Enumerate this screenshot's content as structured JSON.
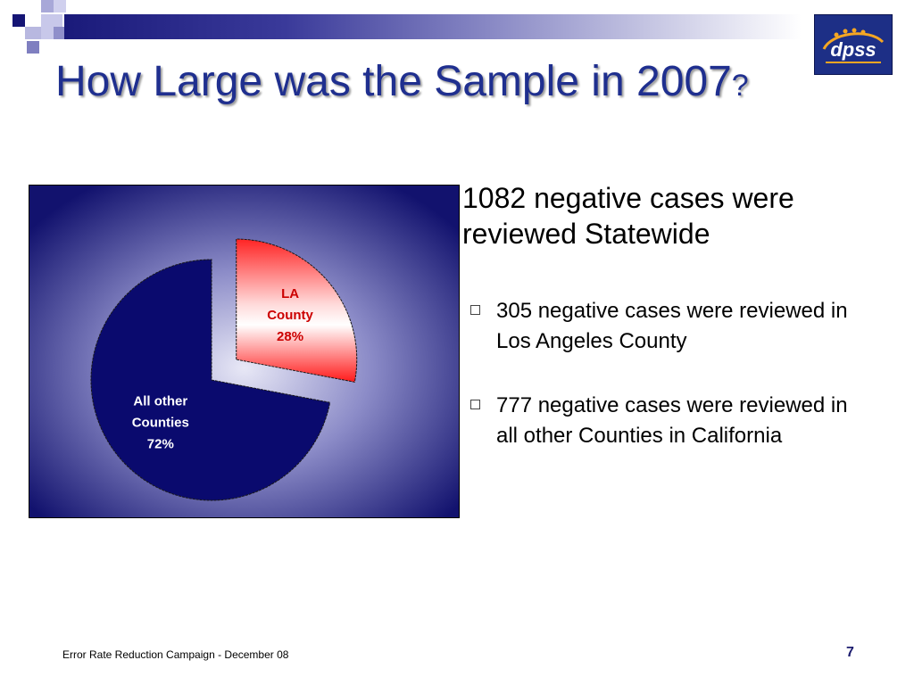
{
  "slide": {
    "title_main": "How Large was the Sample in 2007",
    "title_mark": "?",
    "statewide_text": "1082 negative cases were reviewed Statewide",
    "bullets": [
      {
        "text": "305 negative cases were reviewed in Los Angeles County"
      },
      {
        "text": "777 negative cases were reviewed in all other Counties in California"
      }
    ],
    "footer": "Error Rate Reduction  Campaign -  December  08",
    "page_number": "7",
    "logo_text": "dpss",
    "logo_icon": "dpss-logo-icon"
  },
  "colors": {
    "title": "#1f2f8f",
    "navy": "#0a0a6e",
    "red": "#ff2020"
  },
  "chart_data": {
    "type": "pie",
    "slices": [
      {
        "label_lines": [
          "LA",
          "County",
          "28%"
        ],
        "value": 28,
        "color": "#ff2020",
        "exploded": true
      },
      {
        "label_lines": [
          "All other",
          "Counties",
          "72%"
        ],
        "value": 72,
        "color": "#0a0a6e",
        "exploded": false
      }
    ],
    "start_angle_deg": 0
  }
}
